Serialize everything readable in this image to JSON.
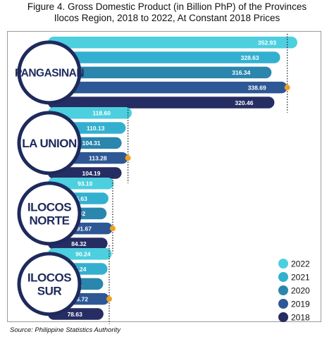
{
  "title_line1": "Figure 4. Gross Domestic Product (in Billion PhP) of the Provinces",
  "title_line2": "Ilocos Region, 2018 to 2022, At Constant 2018 Prices",
  "source": "Source: Philippine Statistics Authority",
  "chart_data": {
    "type": "bar",
    "orientation": "horizontal",
    "title": "Figure 4. Gross Domestic Product (in Billion PhP) of the Provinces Ilocos Region, 2018 to 2022, At Constant 2018 Prices",
    "categories": [
      "PANGASINAN",
      "LA UNION",
      "ILOCOS NORTE",
      "ILOCOS SUR"
    ],
    "category_lines": [
      [
        "PANGASINAN"
      ],
      [
        "LA UNION"
      ],
      [
        "ILOCOS",
        "NORTE"
      ],
      [
        "ILOCOS",
        "SUR"
      ]
    ],
    "series": [
      {
        "name": "2022",
        "color": "#4ccfde",
        "values": [
          352.93,
          118.6,
          93.1,
          90.24
        ]
      },
      {
        "name": "2021",
        "color": "#33b0d0",
        "values": [
          328.63,
          110.13,
          85.63,
          84.24
        ]
      },
      {
        "name": "2020",
        "color": "#2a86ad",
        "values": [
          316.34,
          104.31,
          83.02,
          78.21
        ]
      },
      {
        "name": "2019",
        "color": "#2e5795",
        "values": [
          338.69,
          113.28,
          91.67,
          86.72
        ]
      },
      {
        "name": "2018",
        "color": "#262d63",
        "values": [
          320.46,
          104.19,
          84.32,
          78.63
        ]
      }
    ],
    "series_order_top_to_bottom": [
      "2022",
      "2021",
      "2020",
      "2019",
      "2018"
    ],
    "reference_marker": {
      "series": "2019",
      "color": "#f0a020",
      "style": "dotted vertical line with dot"
    },
    "legend": {
      "placement": "bottom-right",
      "order": [
        "2022",
        "2021",
        "2020",
        "2019",
        "2018"
      ]
    },
    "grid": false,
    "unit": "Billion PhP"
  }
}
